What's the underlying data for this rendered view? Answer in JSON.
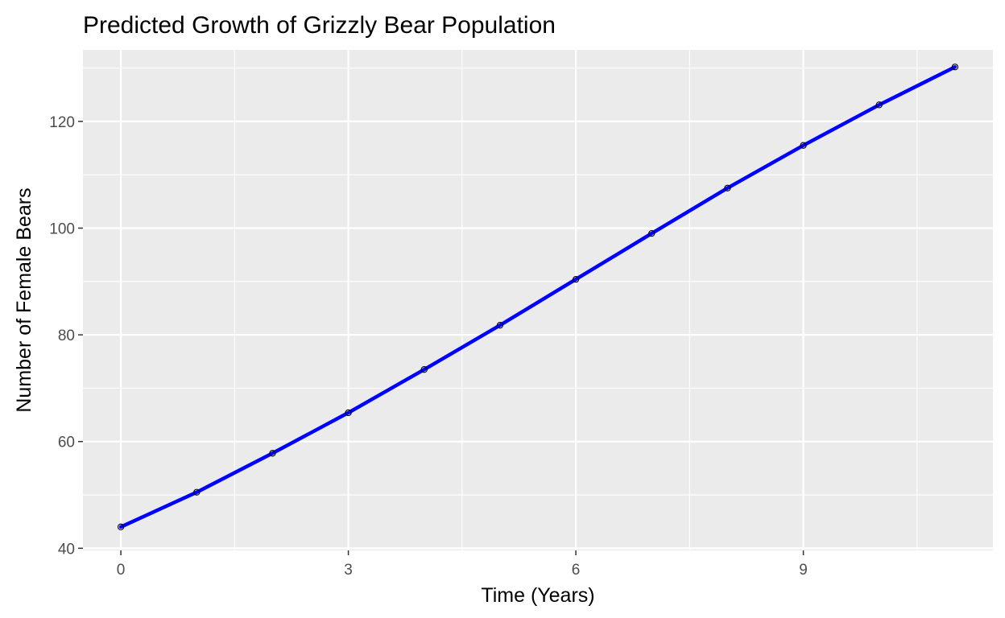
{
  "chart_data": {
    "type": "line",
    "title": "Predicted Growth of Grizzly Bear Population",
    "xlabel": "Time (Years)",
    "ylabel": "Number of Female Bears",
    "xlim": [
      -0.5,
      11.5
    ],
    "ylim": [
      39.6,
      133.4
    ],
    "x_ticks": [
      0,
      3,
      6,
      9
    ],
    "y_ticks": [
      40,
      60,
      80,
      100,
      120
    ],
    "x_minor_ticks": [
      1.5,
      4.5,
      7.5,
      10.5
    ],
    "y_minor_ticks": [
      50,
      70,
      90,
      110,
      130
    ],
    "grid": true,
    "legend": "none",
    "colors": {
      "panel": "#ebebeb",
      "grid": "#ffffff",
      "line": "#0000ff",
      "points": "#000000",
      "ticks": "#333333"
    },
    "series": [
      {
        "x": [
          0,
          1,
          2,
          3,
          4,
          5,
          6,
          7,
          8,
          9,
          10,
          11
        ],
        "y": [
          44.0,
          50.5,
          57.8,
          65.4,
          73.5,
          81.8,
          90.4,
          99.0,
          107.5,
          115.5,
          123.1,
          130.2
        ]
      }
    ]
  }
}
